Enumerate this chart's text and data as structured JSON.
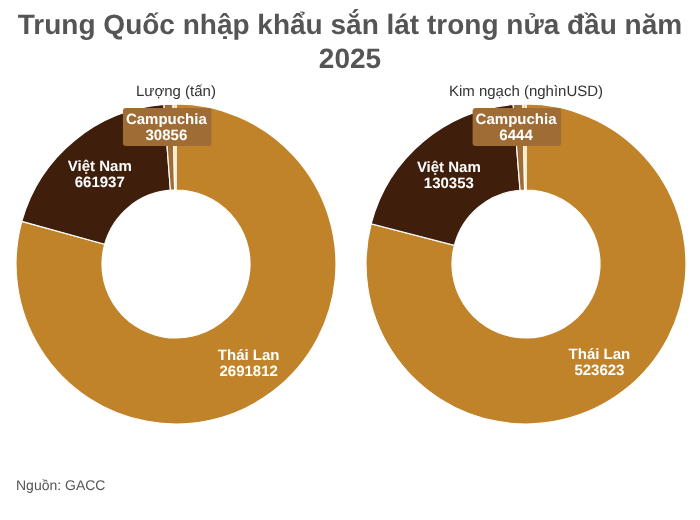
{
  "chart_data": [
    {
      "type": "donut",
      "title": "Trung Quốc nhập khẩu sắn lát trong nửa đầu năm 2025",
      "subtitle": "Lượng (tấn)",
      "categories": [
        "Thái Lan",
        "Việt Nam",
        "Campuchia",
        null
      ],
      "values": [
        2691812,
        661937,
        30856,
        10000
      ],
      "colors": [
        "#c0832a",
        "#3f1f0c",
        "#a06c35",
        "#f2d27a"
      ],
      "value_labels": [
        "2691812",
        "661937",
        "30856",
        null
      ],
      "annotations": [
        "Nguồn: GACC"
      ]
    },
    {
      "type": "donut",
      "subtitle": "Kim ngạch (nghìnUSD)",
      "categories": [
        "Thái Lan",
        "Việt Nam",
        "Campuchia",
        null
      ],
      "values": [
        523623,
        130353,
        6444,
        2000
      ],
      "colors": [
        "#c0832a",
        "#3f1f0c",
        "#a06c35",
        "#f2d27a"
      ],
      "value_labels": [
        "523623",
        "130353",
        "6444",
        null
      ]
    }
  ]
}
